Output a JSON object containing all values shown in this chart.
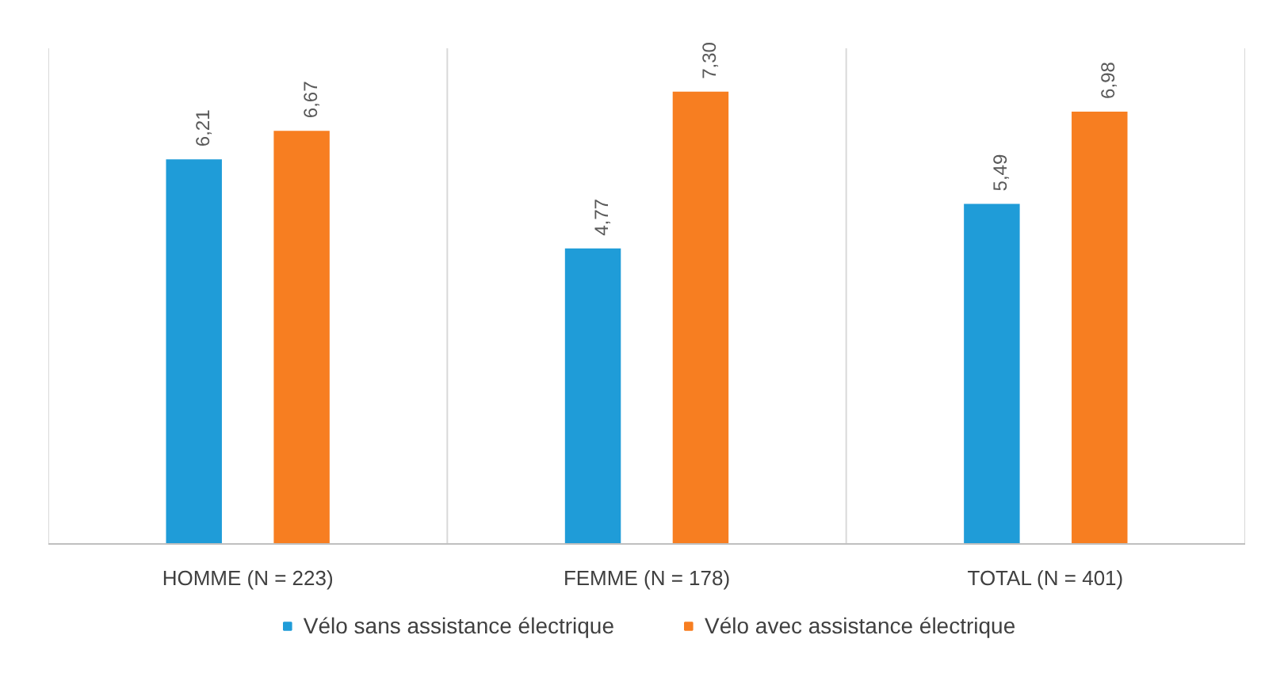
{
  "chart_data": {
    "type": "bar",
    "categories": [
      "HOMME (N = 223)",
      "FEMME (N = 178)",
      "TOTAL (N = 401)"
    ],
    "series": [
      {
        "name": "Vélo sans assistance électrique",
        "color": "#1f9cd8",
        "values": [
          6.21,
          4.77,
          5.49
        ],
        "value_labels": [
          "6,21",
          "4,77",
          "5,49"
        ]
      },
      {
        "name": "Vélo avec assistance électrique",
        "color": "#f77e21",
        "values": [
          6.67,
          7.3,
          6.98
        ],
        "value_labels": [
          "6,67",
          "7,30",
          "6,98"
        ]
      }
    ],
    "ylim": [
      0,
      8
    ],
    "tick_labels": "x",
    "grid": "x",
    "legend": "bottom"
  }
}
